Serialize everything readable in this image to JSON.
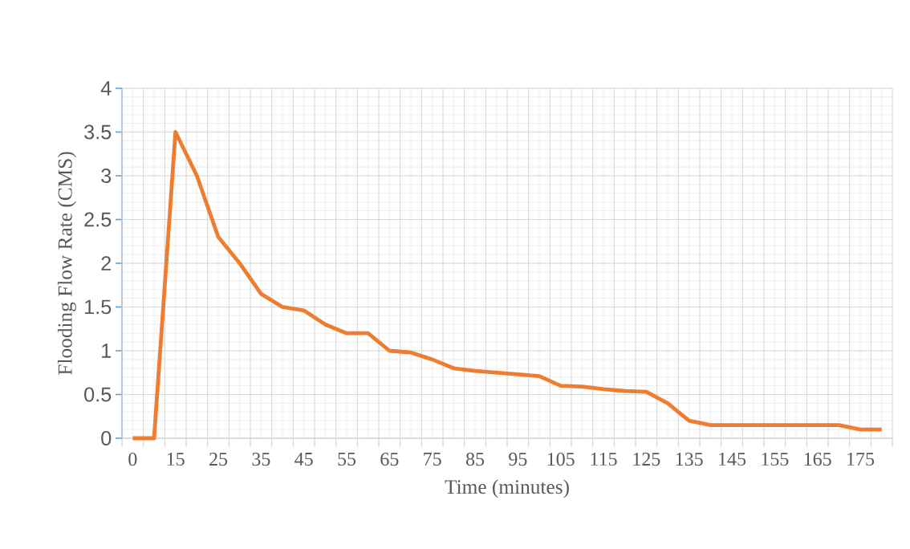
{
  "chart_data": {
    "type": "line",
    "xlabel": "Time (minutes)",
    "ylabel": "Flooding Flow Rate (CMS)",
    "categories": [
      "0",
      null,
      "15",
      null,
      "25",
      null,
      "35",
      null,
      "45",
      null,
      "55",
      null,
      "65",
      null,
      "75",
      null,
      "85",
      null,
      "95",
      null,
      "105",
      null,
      "115",
      null,
      "125",
      null,
      "135",
      null,
      "145",
      null,
      "155",
      null,
      "165",
      null,
      "175",
      null
    ],
    "series": [
      {
        "color": "#ed7d31",
        "values": [
          0,
          0,
          3.5,
          3.0,
          2.3,
          2.0,
          1.65,
          1.5,
          1.46,
          1.3,
          1.2,
          1.2,
          1.0,
          0.98,
          0.9,
          0.8,
          0.77,
          0.75,
          0.73,
          0.71,
          0.6,
          0.59,
          0.56,
          0.54,
          0.53,
          0.4,
          0.2,
          0.15,
          0.15,
          0.15,
          0.15,
          0.15,
          0.15,
          0.15,
          0.1,
          0.1
        ]
      }
    ],
    "ylim": [
      0,
      4
    ],
    "yticks": [
      0,
      0.5,
      1,
      1.5,
      2,
      2.5,
      3,
      3.5,
      4
    ],
    "grid": true,
    "marker": "none",
    "line_style": "solid"
  }
}
